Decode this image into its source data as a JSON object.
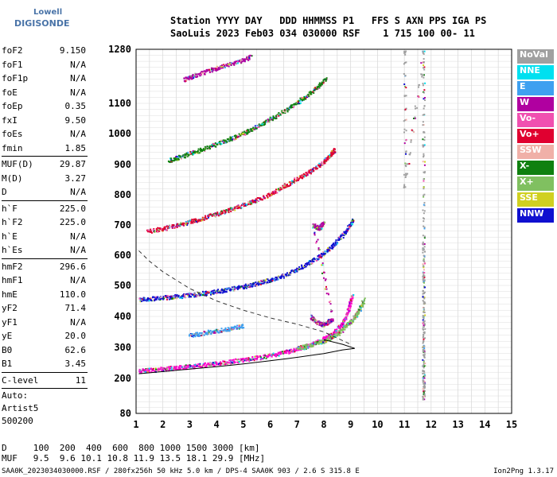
{
  "logo": {
    "line1": "Lowell",
    "line2": "DIGISONDE"
  },
  "header": {
    "line1": "Station YYYY DAY   DDD HHMMSS P1   FFS S AXN PPS IGA PS",
    "line2": "SaoLuis 2023 Feb03 034 030000 RSF    1 715 100 00- 11"
  },
  "params": {
    "group1": [
      {
        "k": "foF2",
        "v": "9.150"
      },
      {
        "k": "foF1",
        "v": "N/A"
      },
      {
        "k": "foF1p",
        "v": "N/A"
      },
      {
        "k": "foE",
        "v": "N/A"
      },
      {
        "k": "foEp",
        "v": "0.35"
      },
      {
        "k": "fxI",
        "v": "9.50"
      },
      {
        "k": "foEs",
        "v": "N/A"
      },
      {
        "k": "fmin",
        "v": "1.85"
      }
    ],
    "group2": [
      {
        "k": "MUF(D)",
        "v": "29.87"
      },
      {
        "k": "M(D)",
        "v": "3.27"
      },
      {
        "k": "D",
        "v": "N/A"
      }
    ],
    "group3": [
      {
        "k": "h`F",
        "v": "225.0"
      },
      {
        "k": "h`F2",
        "v": "225.0"
      },
      {
        "k": "h`E",
        "v": "N/A"
      },
      {
        "k": "h`Es",
        "v": "N/A"
      }
    ],
    "group4": [
      {
        "k": "hmF2",
        "v": "296.6"
      },
      {
        "k": "hmF1",
        "v": "N/A"
      },
      {
        "k": "hmE",
        "v": "110.0"
      },
      {
        "k": "yF2",
        "v": "71.4"
      },
      {
        "k": "yF1",
        "v": "N/A"
      },
      {
        "k": "yE",
        "v": "20.0"
      },
      {
        "k": "B0",
        "v": "62.6"
      },
      {
        "k": "B1",
        "v": "3.45"
      }
    ],
    "clevel": {
      "k": "C-level",
      "v": "11"
    },
    "auto": [
      "Auto:",
      "Artist5",
      "500200"
    ]
  },
  "legend": [
    {
      "label": "NoVal",
      "color": "#a0a0a0"
    },
    {
      "label": "NNE",
      "color": "#00e0f0"
    },
    {
      "label": "E",
      "color": "#3ea0f0"
    },
    {
      "label": "W",
      "color": "#b000a0"
    },
    {
      "label": "Vo-",
      "color": "#f050b0"
    },
    {
      "label": "Vo+",
      "color": "#e00030"
    },
    {
      "label": "SSW",
      "color": "#f0b0a8"
    },
    {
      "label": "X-",
      "color": "#108010"
    },
    {
      "label": "X+",
      "color": "#80c060"
    },
    {
      "label": "SSE",
      "color": "#d0d020"
    },
    {
      "label": "NNW",
      "color": "#1010d0"
    }
  ],
  "muf_table": {
    "line1": "D     100  200  400  600  800 1000 1500 3000 [km]",
    "line2": "MUF   9.5  9.6 10.1 10.8 11.9 13.5 18.1 29.9 [MHz]"
  },
  "footer": "SAA0K_2023034030000.RSF / 280fx256h 50 kHz 5.0 km / DPS-4 SAA0K 903 / 2.6 S 315.8 E",
  "version": "Ion2Png 1.3.17",
  "chart_data": {
    "type": "scatter",
    "x_ticks": [
      1,
      2,
      3,
      4,
      5,
      6,
      7,
      8,
      9,
      10,
      11,
      12,
      13,
      14,
      15
    ],
    "y_ticks": [
      80,
      200,
      300,
      400,
      500,
      600,
      700,
      800,
      900,
      1000,
      1100,
      1280
    ],
    "xlim": [
      1,
      15
    ],
    "ylim": [
      80,
      1280
    ],
    "grid": true,
    "legend_position": "right",
    "series": [
      {
        "color": "#ff00cc",
        "points": [
          [
            1.1,
            226
          ],
          [
            1.5,
            228
          ],
          [
            2.0,
            232
          ],
          [
            2.5,
            236
          ],
          [
            3.0,
            240
          ],
          [
            3.5,
            245
          ],
          [
            4.0,
            250
          ],
          [
            4.5,
            256
          ],
          [
            5.0,
            262
          ],
          [
            5.5,
            268
          ],
          [
            6.0,
            276
          ],
          [
            6.5,
            285
          ],
          [
            7.0,
            296
          ],
          [
            7.5,
            310
          ],
          [
            8.0,
            330
          ],
          [
            8.3,
            345
          ],
          [
            8.6,
            370
          ],
          [
            8.8,
            400
          ],
          [
            8.95,
            440
          ],
          [
            9.05,
            470
          ]
        ]
      },
      {
        "color": "#80c060",
        "points": [
          [
            7.0,
            300
          ],
          [
            7.5,
            310
          ],
          [
            8.0,
            322
          ],
          [
            8.5,
            345
          ],
          [
            8.8,
            370
          ],
          [
            9.1,
            395
          ],
          [
            9.3,
            420
          ],
          [
            9.5,
            460
          ]
        ]
      },
      {
        "color": "#1010d0",
        "points": [
          [
            1.1,
            455
          ],
          [
            1.5,
            458
          ],
          [
            2.0,
            462
          ],
          [
            2.5,
            466
          ],
          [
            3.0,
            470
          ],
          [
            3.5,
            476
          ],
          [
            4.0,
            482
          ],
          [
            4.5,
            490
          ],
          [
            5.0,
            498
          ],
          [
            5.5,
            508
          ],
          [
            6.0,
            520
          ],
          [
            6.5,
            535
          ],
          [
            7.0,
            555
          ],
          [
            7.5,
            580
          ],
          [
            8.0,
            610
          ],
          [
            8.4,
            640
          ],
          [
            8.8,
            680
          ],
          [
            9.1,
            720
          ]
        ]
      },
      {
        "color": "#e00030",
        "points": [
          [
            1.4,
            680
          ],
          [
            2.0,
            690
          ],
          [
            2.5,
            700
          ],
          [
            3.0,
            712
          ],
          [
            3.5,
            725
          ],
          [
            4.0,
            738
          ],
          [
            4.5,
            752
          ],
          [
            5.0,
            768
          ],
          [
            5.5,
            785
          ],
          [
            6.0,
            805
          ],
          [
            6.5,
            830
          ],
          [
            7.0,
            855
          ],
          [
            7.5,
            880
          ],
          [
            7.9,
            905
          ],
          [
            8.2,
            930
          ],
          [
            8.4,
            950
          ]
        ]
      },
      {
        "color": "#108010",
        "points": [
          [
            2.2,
            915
          ],
          [
            2.6,
            925
          ],
          [
            3.0,
            938
          ],
          [
            3.5,
            952
          ],
          [
            4.0,
            968
          ],
          [
            4.5,
            985
          ],
          [
            5.0,
            1003
          ],
          [
            5.5,
            1025
          ],
          [
            6.0,
            1050
          ],
          [
            6.5,
            1075
          ],
          [
            7.0,
            1105
          ],
          [
            7.4,
            1130
          ],
          [
            7.8,
            1160
          ],
          [
            8.1,
            1185
          ]
        ]
      },
      {
        "color": "#b000a0",
        "points": [
          [
            2.8,
            1180
          ],
          [
            3.2,
            1195
          ],
          [
            3.7,
            1210
          ],
          [
            4.2,
            1225
          ],
          [
            4.8,
            1240
          ],
          [
            5.3,
            1258
          ]
        ]
      },
      {
        "color": "#3ea0f0",
        "points": [
          [
            3.0,
            340
          ],
          [
            3.5,
            348
          ],
          [
            4.0,
            355
          ],
          [
            4.5,
            362
          ],
          [
            5.0,
            372
          ]
        ]
      },
      {
        "color": "#b000a0",
        "points": [
          [
            7.5,
            400
          ],
          [
            7.7,
            385
          ],
          [
            7.9,
            375
          ],
          [
            8.1,
            380
          ],
          [
            8.3,
            395
          ],
          [
            7.6,
            700
          ],
          [
            7.8,
            690
          ],
          [
            8.0,
            710
          ]
        ]
      },
      {
        "color": "#a0a0a0",
        "points": [
          [
            11.0,
            1270
          ],
          [
            11.0,
            830
          ],
          [
            11.7,
            1270
          ],
          [
            11.7,
            960
          ],
          [
            11.7,
            640
          ],
          [
            11.7,
            520
          ],
          [
            11.7,
            400
          ],
          [
            11.7,
            290
          ],
          [
            11.7,
            190
          ],
          [
            11.7,
            130
          ]
        ]
      }
    ],
    "profile_curve": [
      [
        1.1,
        215
      ],
      [
        2,
        222
      ],
      [
        3,
        230
      ],
      [
        4,
        238
      ],
      [
        5,
        247
      ],
      [
        6,
        257
      ],
      [
        7,
        268
      ],
      [
        8,
        280
      ],
      [
        8.7,
        292
      ],
      [
        9.15,
        297
      ],
      [
        8.7,
        310
      ],
      [
        8,
        325
      ]
    ],
    "dashed_curve": [
      [
        1.1,
        615
      ],
      [
        1.5,
        580
      ],
      [
        2,
        545
      ],
      [
        3,
        490
      ],
      [
        4,
        450
      ],
      [
        5,
        420
      ],
      [
        6,
        395
      ],
      [
        7,
        375
      ],
      [
        8,
        350
      ],
      [
        9,
        310
      ]
    ]
  }
}
